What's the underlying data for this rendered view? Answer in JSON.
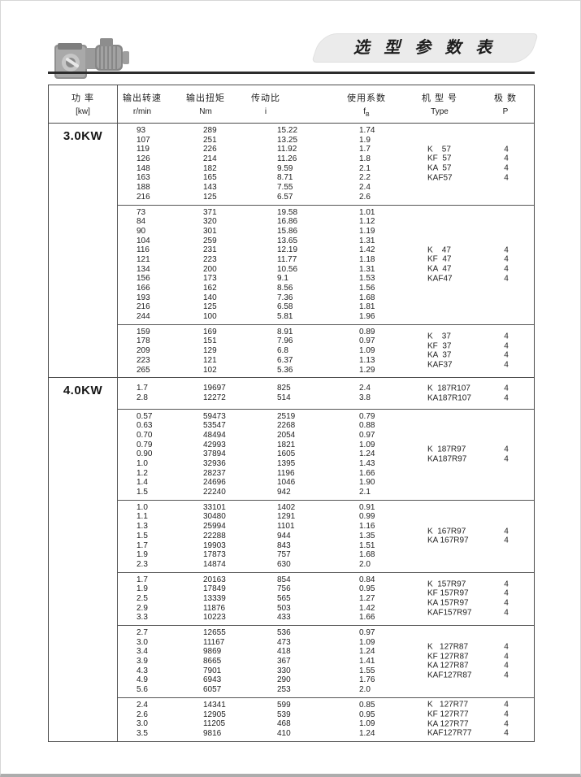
{
  "header": {
    "title": "选 型 参 数 表"
  },
  "table": {
    "col_headers": [
      {
        "label": "功  率",
        "unit": "[kw]"
      },
      {
        "label": "输出转速",
        "unit": "r/min"
      },
      {
        "label": "输出扭矩",
        "unit": "Nm"
      },
      {
        "label": "传动比",
        "unit": "i"
      },
      {
        "label": "使用系数",
        "unit": "f",
        "unit_sub": "B"
      },
      {
        "label": "机 型 号",
        "unit": "Type"
      },
      {
        "label": "极  数",
        "unit": "P"
      }
    ],
    "sections": [
      {
        "power": "3.0KW",
        "blocks": [
          {
            "rows": [
              [
                "93",
                "289",
                "15.22",
                "1.74"
              ],
              [
                "107",
                "251",
                "13.25",
                "1.9"
              ],
              [
                "119",
                "226",
                "11.92",
                "1.7"
              ],
              [
                "126",
                "214",
                "11.26",
                "1.8"
              ],
              [
                "148",
                "182",
                "9.59",
                "2.1"
              ],
              [
                "163",
                "165",
                "8.71",
                "2.2"
              ],
              [
                "188",
                "143",
                "7.55",
                "2.4"
              ],
              [
                "216",
                "125",
                "6.57",
                "2.6"
              ]
            ],
            "types": [
              "K    57",
              "KF  57",
              "KA  57",
              "KAF57"
            ],
            "poles": [
              "4",
              "4",
              "4",
              "4"
            ]
          },
          {
            "rows": [
              [
                "73",
                "371",
                "19.58",
                "1.01"
              ],
              [
                "84",
                "320",
                "16.86",
                "1.12"
              ],
              [
                "90",
                "301",
                "15.86",
                "1.19"
              ],
              [
                "104",
                "259",
                "13.65",
                "1.31"
              ],
              [
                "116",
                "231",
                "12.19",
                "1.42"
              ],
              [
                "121",
                "223",
                "11.77",
                "1.18"
              ],
              [
                "134",
                "200",
                "10.56",
                "1.31"
              ],
              [
                "156",
                "173",
                "9.1",
                "1.53"
              ],
              [
                "166",
                "162",
                "8.56",
                "1.56"
              ],
              [
                "193",
                "140",
                "7.36",
                "1.68"
              ],
              [
                "216",
                "125",
                "6.58",
                "1.81"
              ],
              [
                "244",
                "100",
                "5.81",
                "1.96"
              ]
            ],
            "types": [
              "K    47",
              "KF  47",
              "KA  47",
              "KAF47"
            ],
            "poles": [
              "4",
              "4",
              "4",
              "4"
            ]
          },
          {
            "rows": [
              [
                "159",
                "169",
                "8.91",
                "0.89"
              ],
              [
                "178",
                "151",
                "7.96",
                "0.97"
              ],
              [
                "209",
                "129",
                "6.8",
                "1.09"
              ],
              [
                "223",
                "121",
                "6.37",
                "1.13"
              ],
              [
                "265",
                "102",
                "5.36",
                "1.29"
              ]
            ],
            "types": [
              "K    37",
              "KF  37",
              "KA  37",
              "KAF37"
            ],
            "poles": [
              "4",
              "4",
              "4",
              "4"
            ]
          }
        ]
      },
      {
        "power": "4.0KW",
        "blocks": [
          {
            "tall": true,
            "rows": [
              [
                "1.7",
                "19697",
                "825",
                "2.4"
              ],
              [
                "2.8",
                "12272",
                "514",
                "3.8"
              ]
            ],
            "types": [
              "K  187R107",
              "KA187R107"
            ],
            "poles": [
              "4",
              "4"
            ]
          },
          {
            "rows": [
              [
                "0.57",
                "59473",
                "2519",
                "0.79"
              ],
              [
                "0.63",
                "53547",
                "2268",
                "0.88"
              ],
              [
                "0.70",
                "48494",
                "2054",
                "0.97"
              ],
              [
                "0.79",
                "42993",
                "1821",
                "1.09"
              ],
              [
                "0.90",
                "37894",
                "1605",
                "1.24"
              ],
              [
                "1.0",
                "32936",
                "1395",
                "1.43"
              ],
              [
                "1.2",
                "28237",
                "1196",
                "1.66"
              ],
              [
                "1.4",
                "24696",
                "1046",
                "1.90"
              ],
              [
                "1.5",
                "22240",
                "942",
                "2.1"
              ]
            ],
            "types": [
              "K  187R97",
              "KA187R97"
            ],
            "poles": [
              "4",
              "4"
            ]
          },
          {
            "rows": [
              [
                "1.0",
                "33101",
                "1402",
                "0.91"
              ],
              [
                "1.1",
                "30480",
                "1291",
                "0.99"
              ],
              [
                "1.3",
                "25994",
                "1101",
                "1.16"
              ],
              [
                "1.5",
                "22288",
                "944",
                "1.35"
              ],
              [
                "1.7",
                "19903",
                "843",
                "1.51"
              ],
              [
                "1.9",
                "17873",
                "757",
                "1.68"
              ],
              [
                "2.3",
                "14874",
                "630",
                "2.0"
              ]
            ],
            "types": [
              "K  167R97",
              "KA 167R97"
            ],
            "poles": [
              "4",
              "4"
            ]
          },
          {
            "rows": [
              [
                "1.7",
                "20163",
                "854",
                "0.84"
              ],
              [
                "1.9",
                "17849",
                "756",
                "0.95"
              ],
              [
                "2.5",
                "13339",
                "565",
                "1.27"
              ],
              [
                "2.9",
                "11876",
                "503",
                "1.42"
              ],
              [
                "3.3",
                "10223",
                "433",
                "1.66"
              ]
            ],
            "types": [
              "K  157R97",
              "KF 157R97",
              "KA 157R97",
              "KAF157R97"
            ],
            "poles": [
              "4",
              "4",
              "4",
              "4"
            ]
          },
          {
            "rows": [
              [
                "2.7",
                "12655",
                "536",
                "0.97"
              ],
              [
                "3.0",
                "11167",
                "473",
                "1.09"
              ],
              [
                "3.4",
                "9869",
                "418",
                "1.24"
              ],
              [
                "3.9",
                "8665",
                "367",
                "1.41"
              ],
              [
                "4.3",
                "7901",
                "330",
                "1.55"
              ],
              [
                "4.9",
                "6943",
                "290",
                "1.76"
              ],
              [
                "5.6",
                "6057",
                "253",
                "2.0"
              ]
            ],
            "types": [
              "K   127R87",
              "KF 127R87",
              "KA 127R87",
              "KAF127R87"
            ],
            "poles": [
              "4",
              "4",
              "4",
              "4"
            ]
          },
          {
            "rows": [
              [
                "2.4",
                "14341",
                "599",
                "0.85"
              ],
              [
                "2.6",
                "12905",
                "539",
                "0.95"
              ],
              [
                "3.0",
                "11205",
                "468",
                "1.09"
              ],
              [
                "3.5",
                "9816",
                "410",
                "1.24"
              ]
            ],
            "types": [
              "K   127R77",
              "KF 127R77",
              "KA 127R77",
              "KAF127R77"
            ],
            "poles": [
              "4",
              "4",
              "4",
              "4"
            ]
          }
        ]
      }
    ]
  }
}
